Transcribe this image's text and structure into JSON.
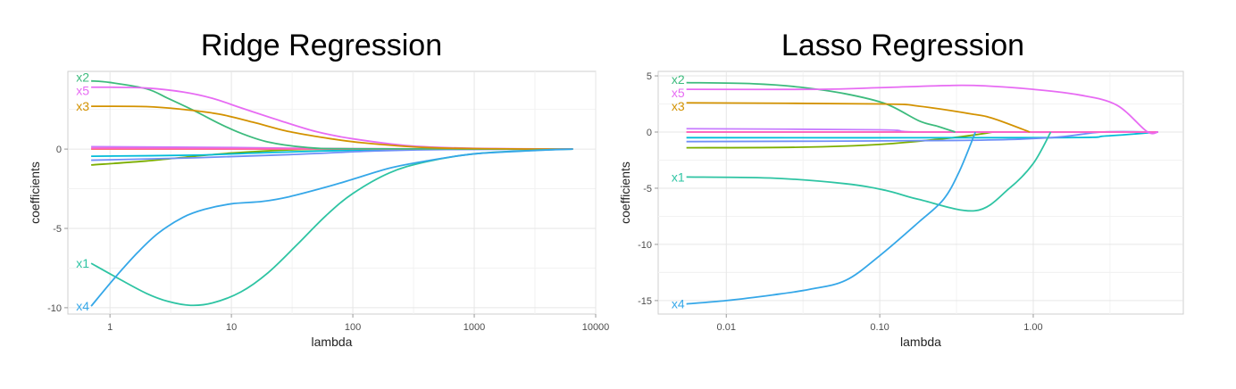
{
  "chart_data": [
    {
      "type": "line",
      "title": "Ridge Regression",
      "xlabel": "lambda",
      "ylabel": "coefficients",
      "x_scale": "log",
      "xlim": [
        0.45,
        10000
      ],
      "ylim": [
        -10.4,
        4.9
      ],
      "x_ticks": [
        1,
        10,
        100,
        1000,
        10000
      ],
      "x_tick_labels": [
        "1",
        "10",
        "100",
        "1000",
        "10000"
      ],
      "y_ticks": [
        0,
        -5,
        -10
      ],
      "y_tick_labels": [
        "0",
        "-5",
        "-10"
      ],
      "grid": true,
      "series": [
        {
          "name": "x2",
          "color": "#3dbb7d",
          "points": [
            [
              0.7,
              4.3
            ],
            [
              1,
              4.2
            ],
            [
              2,
              3.8
            ],
            [
              3,
              3.2
            ],
            [
              5,
              2.4
            ],
            [
              8,
              1.6
            ],
            [
              12,
              1.0
            ],
            [
              20,
              0.45
            ],
            [
              40,
              0.12
            ],
            [
              100,
              0.02
            ],
            [
              6500,
              0
            ]
          ]
        },
        {
          "name": "x5",
          "color": "#e76bf3",
          "points": [
            [
              0.7,
              3.9
            ],
            [
              1,
              3.9
            ],
            [
              2,
              3.85
            ],
            [
              4,
              3.6
            ],
            [
              7,
              3.2
            ],
            [
              12,
              2.6
            ],
            [
              25,
              1.8
            ],
            [
              50,
              1.1
            ],
            [
              100,
              0.65
            ],
            [
              300,
              0.2
            ],
            [
              1000,
              0.05
            ],
            [
              6500,
              0
            ]
          ]
        },
        {
          "name": "x3",
          "color": "#d39200",
          "points": [
            [
              0.7,
              2.7
            ],
            [
              2,
              2.68
            ],
            [
              4,
              2.5
            ],
            [
              8,
              2.2
            ],
            [
              15,
              1.7
            ],
            [
              30,
              1.1
            ],
            [
              60,
              0.7
            ],
            [
              120,
              0.4
            ],
            [
              400,
              0.1
            ],
            [
              1500,
              0.02
            ],
            [
              6500,
              0
            ]
          ]
        },
        {
          "name": "x1",
          "color": "#2ec4a3",
          "points": [
            [
              0.7,
              -7.2
            ],
            [
              1.2,
              -8.2
            ],
            [
              2,
              -9.1
            ],
            [
              3,
              -9.6
            ],
            [
              4.6,
              -9.85
            ],
            [
              7,
              -9.7
            ],
            [
              12,
              -9.0
            ],
            [
              20,
              -7.8
            ],
            [
              35,
              -6.0
            ],
            [
              60,
              -4.2
            ],
            [
              100,
              -2.8
            ],
            [
              200,
              -1.5
            ],
            [
              400,
              -0.8
            ],
            [
              1000,
              -0.3
            ],
            [
              3000,
              -0.08
            ],
            [
              6500,
              0
            ]
          ]
        },
        {
          "name": "x4",
          "color": "#35a7e8",
          "points": [
            [
              0.7,
              -9.9
            ],
            [
              1.1,
              -8.1
            ],
            [
              1.7,
              -6.5
            ],
            [
              2.5,
              -5.3
            ],
            [
              4,
              -4.3
            ],
            [
              6,
              -3.8
            ],
            [
              10,
              -3.45
            ],
            [
              18,
              -3.3
            ],
            [
              30,
              -3.0
            ],
            [
              60,
              -2.4
            ],
            [
              100,
              -1.9
            ],
            [
              200,
              -1.2
            ],
            [
              400,
              -0.75
            ],
            [
              1000,
              -0.3
            ],
            [
              3000,
              -0.1
            ],
            [
              6500,
              0
            ]
          ]
        },
        {
          "name": "",
          "color": "#7cae00",
          "points": [
            [
              0.7,
              -1.0
            ],
            [
              2,
              -0.75
            ],
            [
              5,
              -0.45
            ],
            [
              10,
              -0.25
            ],
            [
              30,
              -0.05
            ],
            [
              100,
              0
            ],
            [
              6500,
              0
            ]
          ]
        },
        {
          "name": "",
          "color": "#00bcd8",
          "points": [
            [
              0.7,
              -0.45
            ],
            [
              5,
              -0.38
            ],
            [
              20,
              -0.22
            ],
            [
              100,
              -0.07
            ],
            [
              500,
              -0.01
            ],
            [
              6500,
              0
            ]
          ]
        },
        {
          "name": "",
          "color": "#6f8ff7",
          "points": [
            [
              0.7,
              -0.7
            ],
            [
              5,
              -0.55
            ],
            [
              30,
              -0.35
            ],
            [
              150,
              -0.12
            ],
            [
              600,
              -0.03
            ],
            [
              6500,
              0
            ]
          ]
        },
        {
          "name": "",
          "color": "#f8766d",
          "points": [
            [
              0.7,
              0
            ],
            [
              6500,
              0
            ]
          ]
        },
        {
          "name": "",
          "color": "#c77cff",
          "points": [
            [
              0.7,
              0.15
            ],
            [
              10,
              0.1
            ],
            [
              100,
              0.02
            ],
            [
              6500,
              0
            ]
          ]
        },
        {
          "name": "",
          "color": "#ff61c3",
          "points": [
            [
              0.7,
              0.05
            ],
            [
              6500,
              0
            ]
          ]
        }
      ]
    },
    {
      "type": "line",
      "title": "Lasso Regression",
      "xlabel": "lambda",
      "ylabel": "coefficients",
      "x_scale": "log",
      "xlim": [
        0.0036,
        9.5
      ],
      "ylim": [
        -16.2,
        5.4
      ],
      "x_ticks": [
        0.01,
        0.1,
        1
      ],
      "x_tick_labels": [
        "0.01",
        "0.10",
        "1.00"
      ],
      "y_ticks": [
        5,
        0,
        -5,
        -10,
        -15
      ],
      "y_tick_labels": [
        "5",
        "0",
        "-5",
        "-10",
        "-15"
      ],
      "grid": true,
      "series": [
        {
          "name": "x2",
          "color": "#3dbb7d",
          "points": [
            [
              0.0055,
              4.4
            ],
            [
              0.015,
              4.3
            ],
            [
              0.03,
              4.0
            ],
            [
              0.06,
              3.4
            ],
            [
              0.11,
              2.5
            ],
            [
              0.18,
              1.0
            ],
            [
              0.24,
              0.5
            ],
            [
              0.31,
              0
            ]
          ]
        },
        {
          "name": "x5",
          "color": "#e76bf3",
          "points": [
            [
              0.0055,
              3.8
            ],
            [
              0.04,
              3.8
            ],
            [
              0.1,
              3.95
            ],
            [
              0.3,
              4.15
            ],
            [
              0.5,
              4.1
            ],
            [
              1.0,
              3.8
            ],
            [
              2.0,
              3.3
            ],
            [
              3.5,
              2.4
            ],
            [
              5.5,
              0.05
            ],
            [
              6.5,
              0
            ]
          ]
        },
        {
          "name": "x3",
          "color": "#d39200",
          "points": [
            [
              0.0055,
              2.6
            ],
            [
              0.1,
              2.5
            ],
            [
              0.18,
              2.3
            ],
            [
              0.4,
              1.6
            ],
            [
              0.55,
              1.2
            ],
            [
              0.95,
              0
            ]
          ]
        },
        {
          "name": "x1",
          "color": "#2ec4a3",
          "points": [
            [
              0.0055,
              -4.0
            ],
            [
              0.02,
              -4.1
            ],
            [
              0.06,
              -4.6
            ],
            [
              0.11,
              -5.2
            ],
            [
              0.18,
              -6.0
            ],
            [
              0.42,
              -7.0
            ],
            [
              0.7,
              -5.0
            ],
            [
              1.0,
              -2.8
            ],
            [
              1.3,
              0
            ]
          ]
        },
        {
          "name": "x4",
          "color": "#35a7e8",
          "points": [
            [
              0.0055,
              -15.3
            ],
            [
              0.01,
              -15.0
            ],
            [
              0.02,
              -14.5
            ],
            [
              0.035,
              -14.0
            ],
            [
              0.06,
              -13.2
            ],
            [
              0.1,
              -11.0
            ],
            [
              0.18,
              -8.0
            ],
            [
              0.26,
              -6.0
            ],
            [
              0.33,
              -3.5
            ],
            [
              0.42,
              0
            ]
          ]
        },
        {
          "name": "",
          "color": "#7cae00",
          "points": [
            [
              0.0055,
              -1.4
            ],
            [
              0.03,
              -1.35
            ],
            [
              0.1,
              -1.1
            ],
            [
              0.3,
              -0.5
            ],
            [
              0.55,
              0
            ]
          ]
        },
        {
          "name": "",
          "color": "#00bcd8",
          "points": [
            [
              0.0055,
              -0.5
            ],
            [
              1.3,
              -0.5
            ],
            [
              3,
              -0.35
            ],
            [
              6.5,
              0
            ]
          ]
        },
        {
          "name": "",
          "color": "#6f8ff7",
          "points": [
            [
              0.0055,
              -0.85
            ],
            [
              0.3,
              -0.75
            ],
            [
              1.3,
              -0.5
            ],
            [
              2.8,
              0
            ],
            [
              6.5,
              0
            ]
          ]
        },
        {
          "name": "",
          "color": "#f8766d",
          "points": [
            [
              0.0055,
              0
            ],
            [
              6.5,
              0
            ]
          ]
        },
        {
          "name": "",
          "color": "#c77cff",
          "points": [
            [
              0.0055,
              0.3
            ],
            [
              0.1,
              0.2
            ],
            [
              0.2,
              0
            ],
            [
              6.5,
              0
            ]
          ]
        },
        {
          "name": "",
          "color": "#ff61c3",
          "points": [
            [
              0.0055,
              0
            ],
            [
              6.5,
              0
            ]
          ]
        }
      ]
    }
  ]
}
